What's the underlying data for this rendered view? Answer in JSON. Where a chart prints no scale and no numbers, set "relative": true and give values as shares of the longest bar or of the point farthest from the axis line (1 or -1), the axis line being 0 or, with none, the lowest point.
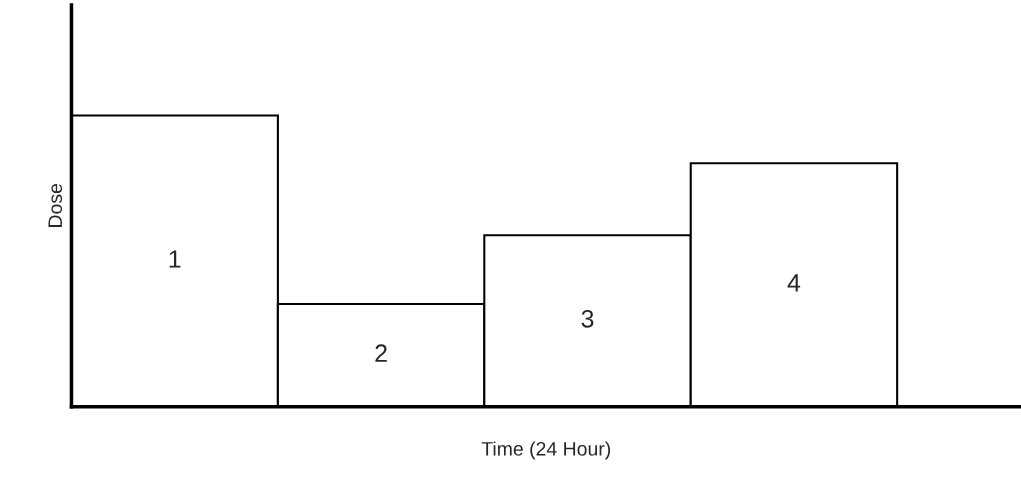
{
  "chart_data": {
    "type": "bar",
    "relative": true,
    "xlabel": "Time (24 Hour)",
    "ylabel": "Dose",
    "categories": [
      "1",
      "2",
      "3",
      "4"
    ],
    "values": [
      1,
      0.353,
      0.589,
      0.836
    ],
    "color": "#ffffff"
  }
}
